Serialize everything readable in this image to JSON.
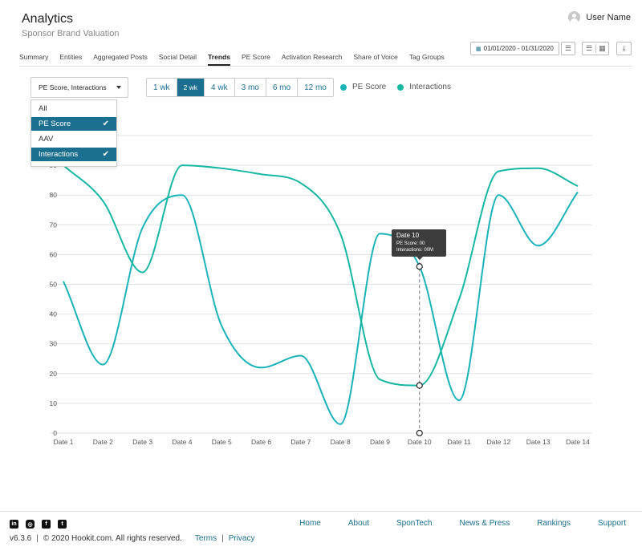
{
  "header": {
    "title": "Analytics",
    "subtitle": "Sponsor Brand Valuation",
    "user_name": "User Name",
    "date_range": "01/01/2020 - 01/31/2020"
  },
  "tabs": [
    {
      "label": "Summary"
    },
    {
      "label": "Entities"
    },
    {
      "label": "Aggregated Posts"
    },
    {
      "label": "Social Detail"
    },
    {
      "label": "Trends",
      "active": true
    },
    {
      "label": "PE Score"
    },
    {
      "label": "Activation Research"
    },
    {
      "label": "Share of Voice"
    },
    {
      "label": "Tag Groups"
    }
  ],
  "metric_select": {
    "value": "PE Score, Interactions",
    "options": [
      {
        "label": "All",
        "selected": false
      },
      {
        "label": "PE Score",
        "selected": true
      },
      {
        "label": "AAV",
        "selected": false
      },
      {
        "label": "Interactions",
        "selected": true
      }
    ]
  },
  "ranges": [
    {
      "label": "1 wk",
      "active": false
    },
    {
      "label": "2 wk",
      "active": true
    },
    {
      "label": "4 wk",
      "active": false
    },
    {
      "label": "3 mo",
      "active": false
    },
    {
      "label": "6 mo",
      "active": false
    },
    {
      "label": "12 mo",
      "active": false
    }
  ],
  "tooltip": {
    "title": "Date 10",
    "pe_score": "PE Score: 00",
    "interactions": "Interactions: 00M"
  },
  "chart_data": {
    "type": "line",
    "categories": [
      "Date 1",
      "Date 2",
      "Date 3",
      "Date 4",
      "Date 5",
      "Date 6",
      "Date 7",
      "Date 8",
      "Date 9",
      "Date 10",
      "Date 11",
      "Date 12",
      "Date 13",
      "Date 14"
    ],
    "yticks": [
      0,
      10,
      20,
      30,
      40,
      50,
      60,
      70,
      80,
      90
    ],
    "ylim": [
      0,
      100
    ],
    "series": [
      {
        "name": "PE Score",
        "color": "#1ab3b8",
        "values": [
          51,
          23,
          69,
          80,
          36,
          22,
          26,
          3,
          67,
          56,
          11,
          80,
          63,
          81
        ]
      },
      {
        "name": "Interactions",
        "color": "#16b7a3",
        "values": [
          90,
          78,
          54,
          90,
          89,
          87,
          84,
          67,
          18,
          16,
          45,
          88,
          89,
          83
        ]
      }
    ],
    "highlight_index": 9,
    "grid": true
  },
  "footer": {
    "links": [
      "Home",
      "About",
      "SponTech",
      "News & Press",
      "Rankings",
      "Support"
    ],
    "version": "v6.3.6",
    "copyright": "© 2020 Hookit.com. All rights reserved.",
    "terms": "Terms",
    "privacy": "Privacy",
    "social": [
      "in",
      "ig",
      "f",
      "tw"
    ]
  }
}
